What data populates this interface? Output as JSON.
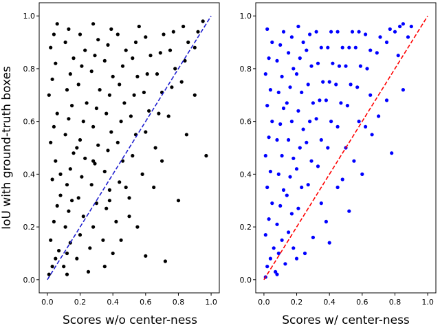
{
  "chart_data": [
    {
      "type": "scatter",
      "xlabel": "Scores w/o center-ness",
      "ylabel": "IoU with ground-truth boxes",
      "xlim": [
        -0.05,
        1.05
      ],
      "ylim": [
        -0.05,
        1.05
      ],
      "xticks": [
        "0.0",
        "0.2",
        "0.4",
        "0.6",
        "0.8",
        "1.0"
      ],
      "yticks": [
        "0.0",
        "0.2",
        "0.4",
        "0.6",
        "0.8",
        "1.0"
      ],
      "grid": false,
      "point_color": "#000000",
      "reference_line": {
        "x": [
          0,
          1
        ],
        "y": [
          0,
          1
        ],
        "style": "dashed",
        "color": "#1f1fd0"
      },
      "series": [
        {
          "points": [
            [
              0.01,
              0.02
            ],
            [
              0.03,
              0.05
            ],
            [
              0.05,
              0.08
            ],
            [
              0.07,
              0.11
            ],
            [
              0.02,
              0.15
            ],
            [
              0.04,
              0.22
            ],
            [
              0.06,
              0.28
            ],
            [
              0.08,
              0.32
            ],
            [
              0.03,
              0.38
            ],
            [
              0.05,
              0.45
            ],
            [
              0.02,
              0.52
            ],
            [
              0.04,
              0.58
            ],
            [
              0.06,
              0.63
            ],
            [
              0.01,
              0.7
            ],
            [
              0.03,
              0.76
            ],
            [
              0.05,
              0.82
            ],
            [
              0.02,
              0.88
            ],
            [
              0.04,
              0.93
            ],
            [
              0.06,
              0.97
            ],
            [
              0.1,
              0.05
            ],
            [
              0.12,
              0.1
            ],
            [
              0.14,
              0.14
            ],
            [
              0.11,
              0.2
            ],
            [
              0.13,
              0.26
            ],
            [
              0.15,
              0.3
            ],
            [
              0.12,
              0.36
            ],
            [
              0.14,
              0.42
            ],
            [
              0.16,
              0.48
            ],
            [
              0.11,
              0.55
            ],
            [
              0.13,
              0.61
            ],
            [
              0.15,
              0.66
            ],
            [
              0.12,
              0.72
            ],
            [
              0.14,
              0.78
            ],
            [
              0.16,
              0.84
            ],
            [
              0.11,
              0.9
            ],
            [
              0.13,
              0.95
            ],
            [
              0.18,
              0.08
            ],
            [
              0.2,
              0.17
            ],
            [
              0.22,
              0.24
            ],
            [
              0.19,
              0.31
            ],
            [
              0.21,
              0.39
            ],
            [
              0.23,
              0.46
            ],
            [
              0.2,
              0.53
            ],
            [
              0.22,
              0.6
            ],
            [
              0.24,
              0.67
            ],
            [
              0.19,
              0.74
            ],
            [
              0.21,
              0.81
            ],
            [
              0.23,
              0.87
            ],
            [
              0.2,
              0.93
            ],
            [
              0.26,
              0.12
            ],
            [
              0.28,
              0.2
            ],
            [
              0.3,
              0.29
            ],
            [
              0.27,
              0.36
            ],
            [
              0.29,
              0.44
            ],
            [
              0.31,
              0.51
            ],
            [
              0.28,
              0.58
            ],
            [
              0.3,
              0.65
            ],
            [
              0.32,
              0.72
            ],
            [
              0.27,
              0.79
            ],
            [
              0.29,
              0.85
            ],
            [
              0.31,
              0.91
            ],
            [
              0.28,
              0.97
            ],
            [
              0.34,
              0.15
            ],
            [
              0.36,
              0.27
            ],
            [
              0.38,
              0.34
            ],
            [
              0.35,
              0.41
            ],
            [
              0.37,
              0.49
            ],
            [
              0.39,
              0.56
            ],
            [
              0.36,
              0.63
            ],
            [
              0.38,
              0.7
            ],
            [
              0.4,
              0.77
            ],
            [
              0.35,
              0.83
            ],
            [
              0.37,
              0.89
            ],
            [
              0.39,
              0.95
            ],
            [
              0.42,
              0.22
            ],
            [
              0.44,
              0.37
            ],
            [
              0.46,
              0.45
            ],
            [
              0.43,
              0.52
            ],
            [
              0.45,
              0.6
            ],
            [
              0.47,
              0.67
            ],
            [
              0.44,
              0.74
            ],
            [
              0.46,
              0.81
            ],
            [
              0.48,
              0.87
            ],
            [
              0.43,
              0.93
            ],
            [
              0.5,
              0.31
            ],
            [
              0.52,
              0.47
            ],
            [
              0.54,
              0.55
            ],
            [
              0.51,
              0.62
            ],
            [
              0.53,
              0.7
            ],
            [
              0.55,
              0.77
            ],
            [
              0.52,
              0.84
            ],
            [
              0.54,
              0.9
            ],
            [
              0.56,
              0.96
            ],
            [
              0.58,
              0.4
            ],
            [
              0.6,
              0.56
            ],
            [
              0.62,
              0.64
            ],
            [
              0.59,
              0.71
            ],
            [
              0.61,
              0.78
            ],
            [
              0.63,
              0.85
            ],
            [
              0.6,
              0.92
            ],
            [
              0.66,
              0.5
            ],
            [
              0.68,
              0.63
            ],
            [
              0.7,
              0.71
            ],
            [
              0.67,
              0.78
            ],
            [
              0.69,
              0.86
            ],
            [
              0.71,
              0.93
            ],
            [
              0.74,
              0.62
            ],
            [
              0.76,
              0.73
            ],
            [
              0.78,
              0.8
            ],
            [
              0.75,
              0.87
            ],
            [
              0.77,
              0.94
            ],
            [
              0.82,
              0.75
            ],
            [
              0.84,
              0.83
            ],
            [
              0.86,
              0.9
            ],
            [
              0.83,
              0.96
            ],
            [
              0.9,
              0.88
            ],
            [
              0.92,
              0.94
            ],
            [
              0.95,
              0.98
            ],
            [
              0.97,
              0.47
            ],
            [
              0.12,
              0.02
            ],
            [
              0.4,
              0.1
            ],
            [
              0.55,
              0.2
            ],
            [
              0.65,
              0.35
            ],
            [
              0.72,
              0.07
            ],
            [
              0.8,
              0.3
            ],
            [
              0.35,
              0.05
            ],
            [
              0.25,
              0.03
            ],
            [
              0.6,
              0.09
            ],
            [
              0.45,
              0.15
            ],
            [
              0.5,
              0.24
            ],
            [
              0.7,
              0.45
            ],
            [
              0.85,
              0.55
            ],
            [
              0.9,
              0.7
            ],
            [
              0.08,
              0.4
            ],
            [
              0.18,
              0.5
            ],
            [
              0.28,
              0.45
            ],
            [
              0.38,
              0.3
            ],
            [
              0.48,
              0.35
            ]
          ]
        }
      ]
    },
    {
      "type": "scatter",
      "xlabel": "Scores w/ center-ness",
      "ylabel": "",
      "xlim": [
        -0.05,
        1.05
      ],
      "ylim": [
        -0.05,
        1.05
      ],
      "xticks": [
        "0.0",
        "0.2",
        "0.4",
        "0.6",
        "0.8",
        "1.0"
      ],
      "yticks": [
        "0.0",
        "0.2",
        "0.4",
        "0.6",
        "0.8",
        "1.0"
      ],
      "grid": false,
      "point_color": "#0000ff",
      "reference_line": {
        "x": [
          0,
          1
        ],
        "y": [
          0,
          1
        ],
        "style": "dashed",
        "color": "#ff0000"
      },
      "series": [
        {
          "points": [
            [
              0.01,
              0.01
            ],
            [
              0.02,
              0.05
            ],
            [
              0.04,
              0.08
            ],
            [
              0.06,
              0.12
            ],
            [
              0.01,
              0.17
            ],
            [
              0.03,
              0.23
            ],
            [
              0.05,
              0.29
            ],
            [
              0.02,
              0.35
            ],
            [
              0.04,
              0.41
            ],
            [
              0.01,
              0.47
            ],
            [
              0.03,
              0.54
            ],
            [
              0.05,
              0.6
            ],
            [
              0.02,
              0.66
            ],
            [
              0.04,
              0.72
            ],
            [
              0.01,
              0.78
            ],
            [
              0.03,
              0.84
            ],
            [
              0.05,
              0.9
            ],
            [
              0.02,
              0.95
            ],
            [
              0.08,
              0.02
            ],
            [
              0.09,
              0.1
            ],
            [
              0.11,
              0.15
            ],
            [
              0.08,
              0.21
            ],
            [
              0.1,
              0.28
            ],
            [
              0.12,
              0.34
            ],
            [
              0.09,
              0.4
            ],
            [
              0.11,
              0.47
            ],
            [
              0.08,
              0.53
            ],
            [
              0.1,
              0.59
            ],
            [
              0.12,
              0.65
            ],
            [
              0.09,
              0.71
            ],
            [
              0.11,
              0.77
            ],
            [
              0.08,
              0.83
            ],
            [
              0.1,
              0.89
            ],
            [
              0.12,
              0.94
            ],
            [
              0.15,
              0.18
            ],
            [
              0.17,
              0.25
            ],
            [
              0.14,
              0.32
            ],
            [
              0.16,
              0.39
            ],
            [
              0.18,
              0.46
            ],
            [
              0.15,
              0.53
            ],
            [
              0.17,
              0.6
            ],
            [
              0.14,
              0.67
            ],
            [
              0.16,
              0.73
            ],
            [
              0.18,
              0.8
            ],
            [
              0.15,
              0.86
            ],
            [
              0.17,
              0.92
            ],
            [
              0.21,
              0.27
            ],
            [
              0.23,
              0.35
            ],
            [
              0.2,
              0.42
            ],
            [
              0.22,
              0.5
            ],
            [
              0.24,
              0.57
            ],
            [
              0.21,
              0.64
            ],
            [
              0.23,
              0.71
            ],
            [
              0.2,
              0.78
            ],
            [
              0.22,
              0.84
            ],
            [
              0.24,
              0.9
            ],
            [
              0.21,
              0.96
            ],
            [
              0.27,
              0.36
            ],
            [
              0.29,
              0.45
            ],
            [
              0.26,
              0.52
            ],
            [
              0.28,
              0.6
            ],
            [
              0.3,
              0.67
            ],
            [
              0.27,
              0.74
            ],
            [
              0.29,
              0.81
            ],
            [
              0.26,
              0.87
            ],
            [
              0.28,
              0.93
            ],
            [
              0.33,
              0.43
            ],
            [
              0.35,
              0.53
            ],
            [
              0.32,
              0.61
            ],
            [
              0.34,
              0.68
            ],
            [
              0.36,
              0.75
            ],
            [
              0.33,
              0.82
            ],
            [
              0.35,
              0.88
            ],
            [
              0.32,
              0.94
            ],
            [
              0.39,
              0.5
            ],
            [
              0.41,
              0.6
            ],
            [
              0.38,
              0.68
            ],
            [
              0.4,
              0.75
            ],
            [
              0.42,
              0.82
            ],
            [
              0.39,
              0.88
            ],
            [
              0.41,
              0.94
            ],
            [
              0.45,
              0.58
            ],
            [
              0.47,
              0.67
            ],
            [
              0.44,
              0.74
            ],
            [
              0.46,
              0.81
            ],
            [
              0.48,
              0.88
            ],
            [
              0.45,
              0.94
            ],
            [
              0.51,
              0.66
            ],
            [
              0.53,
              0.74
            ],
            [
              0.5,
              0.81
            ],
            [
              0.52,
              0.88
            ],
            [
              0.54,
              0.94
            ],
            [
              0.57,
              0.73
            ],
            [
              0.59,
              0.81
            ],
            [
              0.56,
              0.88
            ],
            [
              0.58,
              0.94
            ],
            [
              0.63,
              0.8
            ],
            [
              0.65,
              0.87
            ],
            [
              0.62,
              0.93
            ],
            [
              0.69,
              0.86
            ],
            [
              0.71,
              0.92
            ],
            [
              0.75,
              0.9
            ],
            [
              0.77,
              0.95
            ],
            [
              0.8,
              0.94
            ],
            [
              0.83,
              0.96
            ],
            [
              0.85,
              0.97
            ],
            [
              0.78,
              0.48
            ],
            [
              0.66,
              0.55
            ],
            [
              0.55,
              0.45
            ],
            [
              0.6,
              0.4
            ],
            [
              0.48,
              0.38
            ],
            [
              0.52,
              0.26
            ],
            [
              0.35,
              0.29
            ],
            [
              0.3,
              0.16
            ],
            [
              0.25,
              0.1
            ],
            [
              0.4,
              0.14
            ],
            [
              0.2,
              0.08
            ],
            [
              0.45,
              0.35
            ],
            [
              0.7,
              0.62
            ],
            [
              0.85,
              0.72
            ],
            [
              0.82,
              0.85
            ],
            [
              0.75,
              0.68
            ],
            [
              0.88,
              0.92
            ],
            [
              0.9,
              0.96
            ],
            [
              0.65,
              0.7
            ],
            [
              0.58,
              0.6
            ],
            [
              0.18,
              0.12
            ],
            [
              0.13,
              0.06
            ],
            [
              0.07,
              0.03
            ],
            [
              0.38,
              0.22
            ],
            [
              0.5,
              0.5
            ],
            [
              0.62,
              0.58
            ]
          ]
        }
      ]
    }
  ]
}
